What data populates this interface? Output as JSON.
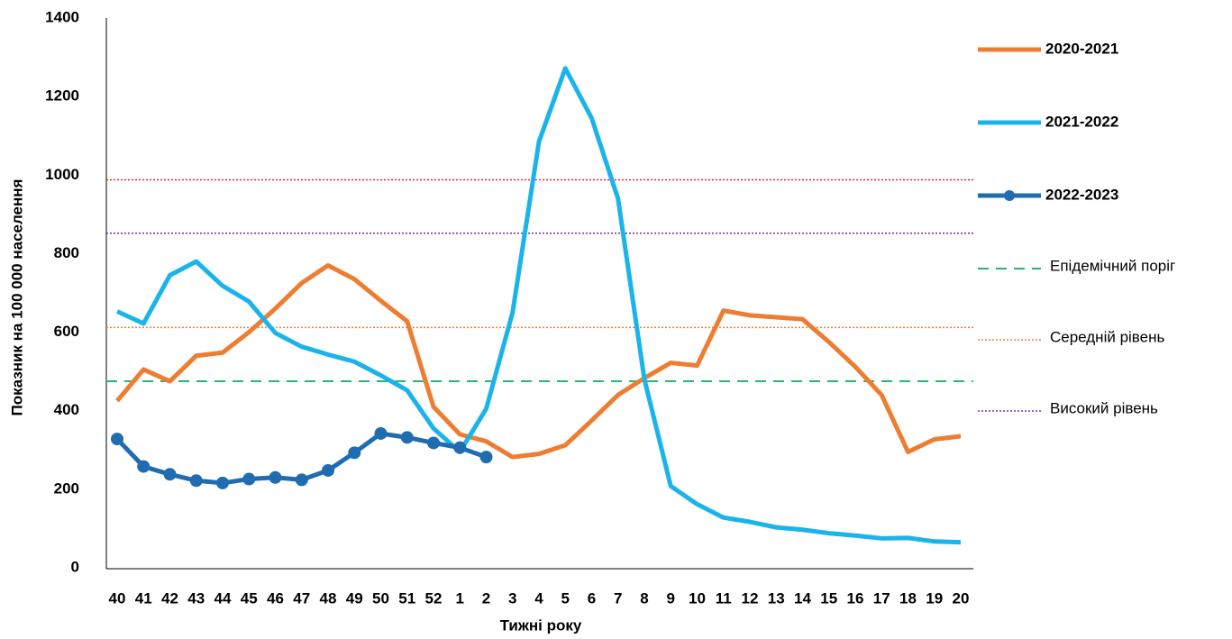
{
  "chart_data": {
    "type": "line",
    "x_label": "Тижні року",
    "y_label": "Показник на 100 000 населення",
    "categories": [
      "40",
      "41",
      "42",
      "43",
      "44",
      "45",
      "46",
      "47",
      "48",
      "49",
      "50",
      "51",
      "52",
      "1",
      "2",
      "3",
      "4",
      "5",
      "6",
      "7",
      "8",
      "9",
      "10",
      "11",
      "12",
      "13",
      "14",
      "15",
      "16",
      "17",
      "18",
      "19",
      "20"
    ],
    "series": [
      {
        "name": "2020-2021",
        "color": "#ed7d31",
        "marker": false,
        "values": [
          425,
          505,
          475,
          540,
          548,
          600,
          660,
          725,
          770,
          735,
          680,
          628,
          410,
          340,
          322,
          282,
          290,
          312,
          375,
          440,
          483,
          522,
          515,
          655,
          643,
          638,
          633,
          575,
          512,
          440,
          295,
          327,
          335
        ]
      },
      {
        "name": "2021-2022",
        "color": "#1ab4ea",
        "marker": false,
        "values": [
          653,
          622,
          745,
          780,
          718,
          678,
          598,
          563,
          543,
          525,
          490,
          452,
          355,
          295,
          405,
          650,
          1085,
          1272,
          1145,
          940,
          480,
          208,
          162,
          128,
          117,
          103,
          97,
          88,
          82,
          75,
          76,
          67,
          65
        ]
      },
      {
        "name": "2022-2023",
        "color": "#1f6db0",
        "marker": true,
        "values": [
          328,
          258,
          238,
          222,
          216,
          226,
          230,
          224,
          248,
          293,
          342,
          332,
          318,
          306,
          282,
          null,
          null,
          null,
          null,
          null,
          null,
          null,
          null,
          null,
          null,
          null,
          null,
          null,
          null,
          null,
          null,
          null,
          null
        ]
      }
    ],
    "reference_lines": [
      {
        "name": "Епідемічний поріг",
        "value": 475,
        "color": "#2db46e",
        "style": "dashed"
      },
      {
        "name": "Середній рівень",
        "value": 612,
        "color": "#ed7d31",
        "style": "dotted"
      },
      {
        "name": "Високий рівень",
        "value": 852,
        "color": "#7030a0",
        "style": "dotted"
      },
      {
        "value": 988,
        "color": "#e03030",
        "style": "dotted"
      }
    ],
    "ylim": [
      0,
      1400
    ],
    "yticks": [
      0,
      200,
      400,
      600,
      800,
      1000,
      1200,
      1400
    ],
    "grid": false
  }
}
